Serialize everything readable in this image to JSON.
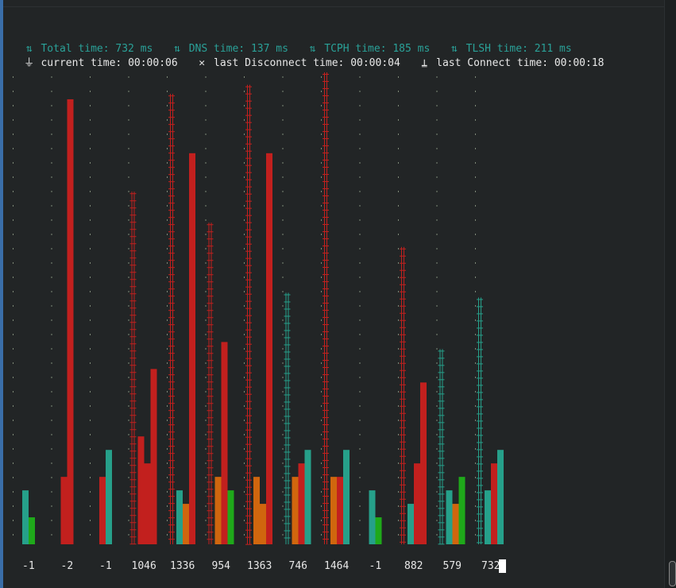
{
  "stats": {
    "total_label": "Total time:",
    "total_value": "732 ms",
    "dns_label": "DNS time:",
    "dns_value": "137 ms",
    "tcph_label": "TCPH time:",
    "tcph_value": "185 ms",
    "tlsh_label": "TLSH time:",
    "tlsh_value": "211 ms"
  },
  "status": {
    "current_label": "current time:",
    "current_value": "00:00:06",
    "disconnect_label": "last Disconnect time:",
    "disconnect_value": "00:00:04",
    "connect_label": "last Connect time:",
    "connect_value": "00:00:18"
  },
  "icons": {
    "timing": "sync-arrows-icon",
    "current": "plug-icon",
    "disconnect": "close-icon",
    "connect": "signal-tower-icon"
  },
  "colors": {
    "teal": "#26a08a",
    "red": "#c2201e",
    "orange": "#d0660e",
    "green": "#1fa91a",
    "dim_dots": "#7f8a78",
    "text": "#e8e8e8",
    "accent": "#2aa198"
  },
  "chart_data": {
    "type": "bar",
    "ylim": [
      0,
      1400
    ],
    "categories": [
      "-1",
      "-2",
      "-1",
      "1046",
      "1336",
      "954",
      "1363",
      "746",
      "1464",
      "-1",
      "882",
      "579",
      "732"
    ],
    "series": [],
    "samples": [
      {
        "label": "-1",
        "total": -1,
        "bars": [
          {
            "c": "teal",
            "v": 160
          },
          {
            "c": "green",
            "v": 80
          }
        ],
        "marker": null
      },
      {
        "label": "-2",
        "total": -2,
        "bars": [
          {
            "c": "red",
            "v": 200
          },
          {
            "c": "red",
            "v": 1320
          }
        ],
        "marker": null
      },
      {
        "label": "-1",
        "total": -1,
        "bars": [
          {
            "c": "red",
            "v": 200
          },
          {
            "c": "teal",
            "v": 280
          }
        ],
        "marker": "red"
      },
      {
        "label": "1046",
        "total": 1046,
        "bars": [
          {
            "c": "red",
            "v": 320
          },
          {
            "c": "red",
            "v": 240
          },
          {
            "c": "red",
            "v": 520
          }
        ],
        "marker": "red"
      },
      {
        "label": "1336",
        "total": 1336,
        "bars": [
          {
            "c": "teal",
            "v": 160
          },
          {
            "c": "orange",
            "v": 120
          },
          {
            "c": "red",
            "v": 1160
          }
        ],
        "marker": "red"
      },
      {
        "label": "954",
        "total": 954,
        "bars": [
          {
            "c": "orange",
            "v": 200
          },
          {
            "c": "red",
            "v": 600
          },
          {
            "c": "green",
            "v": 160
          }
        ],
        "marker": "red"
      },
      {
        "label": "1363",
        "total": 1363,
        "bars": [
          {
            "c": "orange",
            "v": 200
          },
          {
            "c": "orange",
            "v": 120
          },
          {
            "c": "red",
            "v": 1160
          }
        ],
        "marker": "red"
      },
      {
        "label": "746",
        "total": 746,
        "bars": [
          {
            "c": "orange",
            "v": 200
          },
          {
            "c": "red",
            "v": 240
          },
          {
            "c": "teal",
            "v": 280
          }
        ],
        "marker": "teal"
      },
      {
        "label": "1464",
        "total": 1464,
        "bars": [
          {
            "c": "orange",
            "v": 200
          },
          {
            "c": "red",
            "v": 200
          },
          {
            "c": "teal",
            "v": 280
          }
        ],
        "marker": "red"
      },
      {
        "label": "-1",
        "total": -1,
        "bars": [
          {
            "c": "teal",
            "v": 160
          },
          {
            "c": "green",
            "v": 80
          }
        ],
        "marker": null
      },
      {
        "label": "882",
        "total": 882,
        "bars": [
          {
            "c": "teal",
            "v": 120
          },
          {
            "c": "red",
            "v": 240
          },
          {
            "c": "red",
            "v": 480
          }
        ],
        "marker": "red"
      },
      {
        "label": "579",
        "total": 579,
        "bars": [
          {
            "c": "teal",
            "v": 160
          },
          {
            "c": "orange",
            "v": 120
          },
          {
            "c": "green",
            "v": 200
          }
        ],
        "marker": "teal"
      },
      {
        "label": "732",
        "total": 732,
        "bars": [
          {
            "c": "teal",
            "v": 160
          },
          {
            "c": "red",
            "v": 240
          },
          {
            "c": "teal",
            "v": 280
          }
        ],
        "marker": "teal"
      }
    ]
  }
}
